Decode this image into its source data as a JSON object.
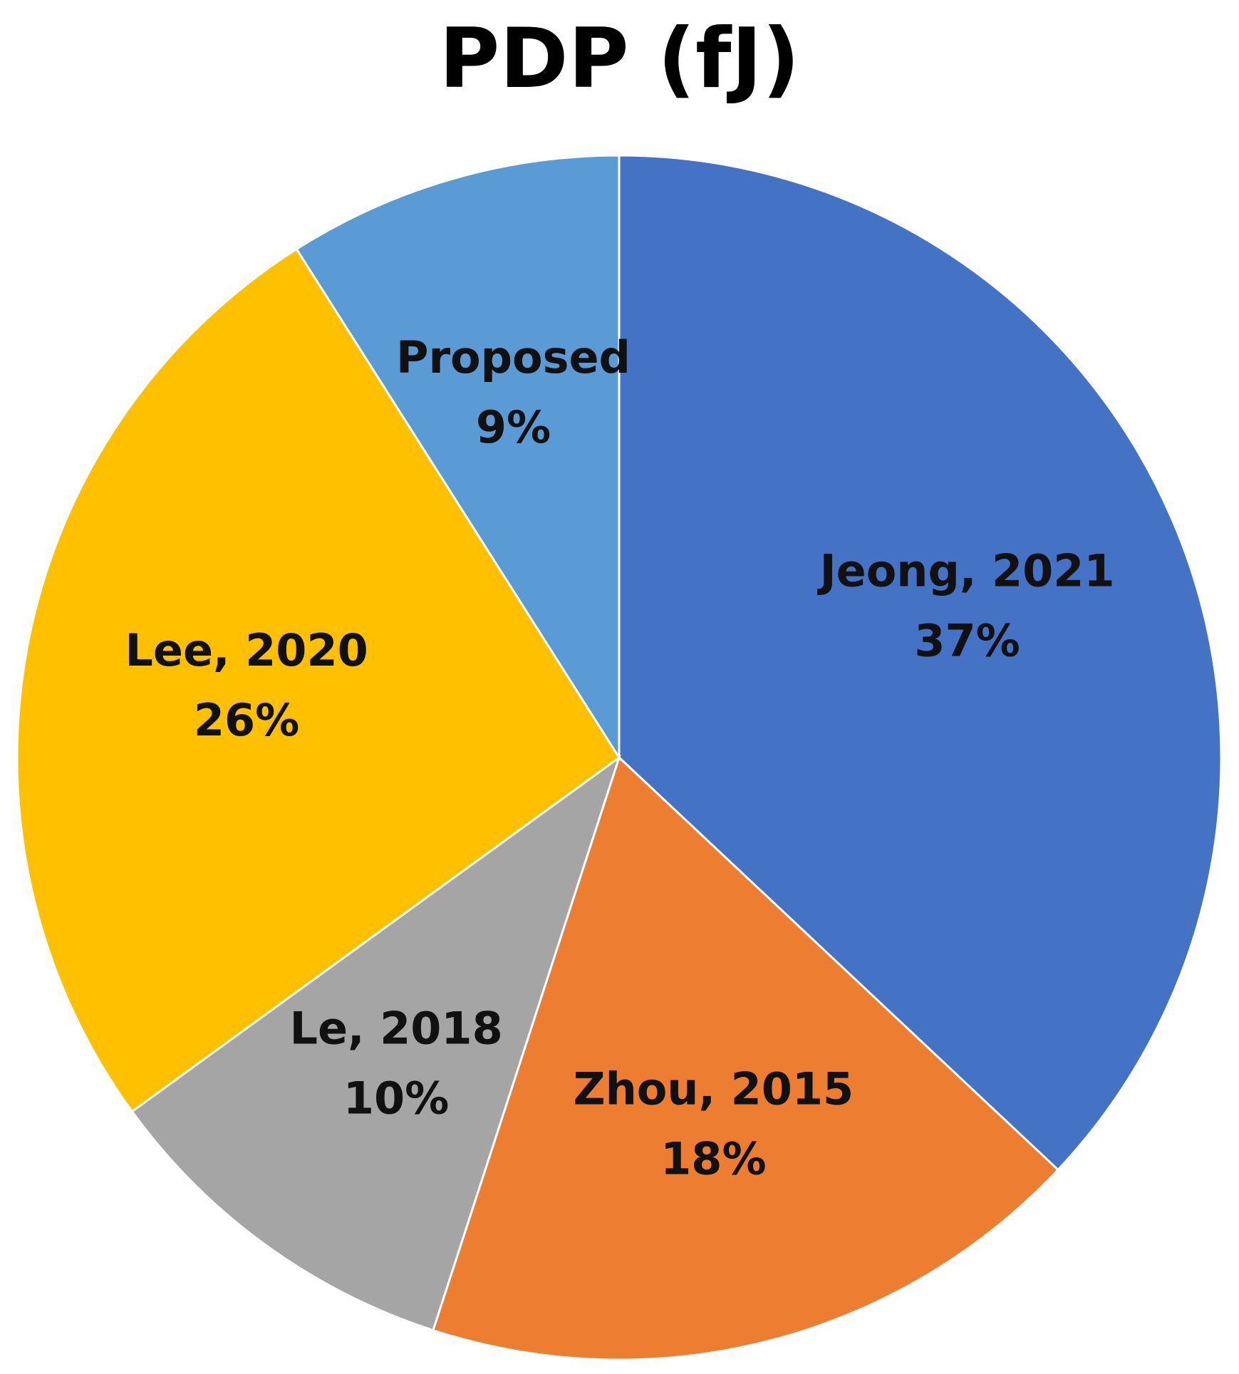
{
  "chart_data": {
    "type": "pie",
    "title": "PDP (fJ)",
    "slices": [
      {
        "label": "Jeong, 2021",
        "value": 37,
        "value_label": "37%",
        "color": "#4472C4"
      },
      {
        "label": "Zhou, 2015",
        "value": 18,
        "value_label": "18%",
        "color": "#ED7D31"
      },
      {
        "label": "Le, 2018",
        "value": 10,
        "value_label": "10%",
        "color": "#A5A5A5"
      },
      {
        "label": "Lee, 2020",
        "value": 26,
        "value_label": "26%",
        "color": "#FFC000"
      },
      {
        "label": "Proposed",
        "value": 9,
        "value_label": "9%",
        "color": "#5B9BD5"
      }
    ],
    "start": "12 o'clock",
    "direction": "clockwise",
    "legend": "none"
  }
}
